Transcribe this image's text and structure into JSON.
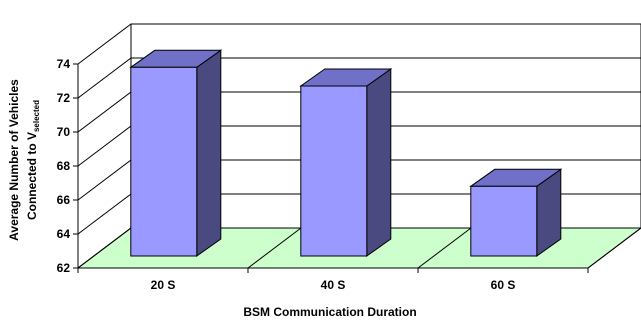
{
  "chart_data": {
    "type": "bar",
    "categories": [
      "20 S",
      "40 S",
      "60 S"
    ],
    "values": [
      73.1,
      72.0,
      66.1
    ],
    "ylim": [
      62,
      74
    ],
    "yticks": [
      62,
      64,
      66,
      68,
      70,
      72,
      74
    ],
    "xlabel": "BSM Communication Duration",
    "ylabel_line1": "Average Number of Vehicles",
    "ylabel_line2_main": "Connected to V",
    "ylabel_line2_sub": "selected",
    "grid": true,
    "legend": "none",
    "colors": {
      "bar_front": "#9999ff",
      "bar_side": "#4a4a80",
      "bar_top": "#7070c8",
      "floor": "#ccffcc",
      "grid": "#000000"
    }
  }
}
